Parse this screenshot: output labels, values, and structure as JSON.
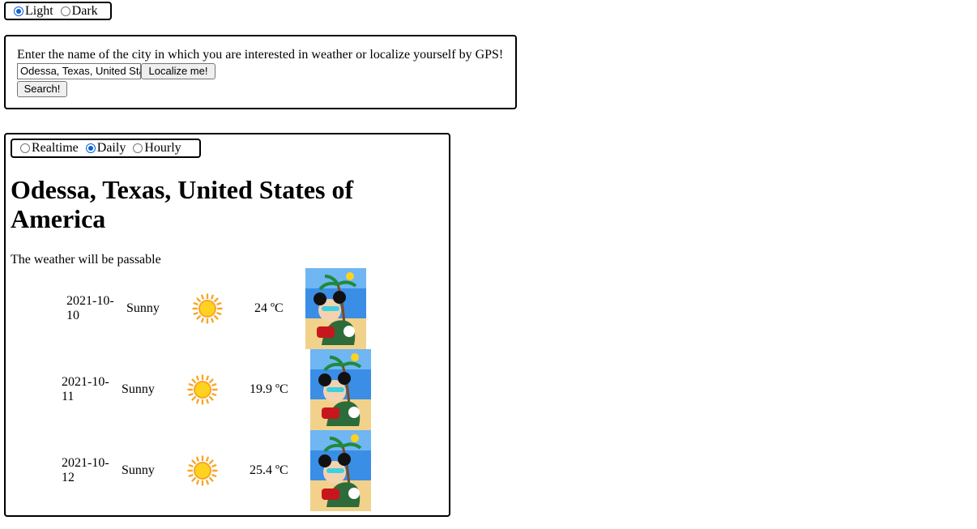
{
  "theme": {
    "options": [
      {
        "label": "Light",
        "checked": true
      },
      {
        "label": "Dark",
        "checked": false
      }
    ]
  },
  "search": {
    "prompt": "Enter the name of the city in which you are interested in weather or localize yourself by GPS!",
    "city_value": "Odessa, Texas, United States of America",
    "localize_label": "Localize me!",
    "search_label": "Search!"
  },
  "forecast": {
    "modes": [
      {
        "label": "Realtime",
        "checked": false
      },
      {
        "label": "Daily",
        "checked": true
      },
      {
        "label": "Hourly",
        "checked": false
      }
    ],
    "location": "Odessa, Texas, United States of America",
    "summary": "The weather will be passable",
    "days": [
      {
        "date": "2021-10-10",
        "condition": "Sunny",
        "temperature": "24 ºC",
        "icon": "sun-icon"
      },
      {
        "date": "2021-10-11",
        "condition": "Sunny",
        "temperature": "19.9 ºC",
        "icon": "sun-icon"
      },
      {
        "date": "2021-10-12",
        "condition": "Sunny",
        "temperature": "25.4 ºC",
        "icon": "sun-icon"
      }
    ]
  },
  "colors": {
    "radio_accent": "#0a63d6",
    "sun_fill": "#ffd21f",
    "sun_ray": "#f7a628"
  }
}
